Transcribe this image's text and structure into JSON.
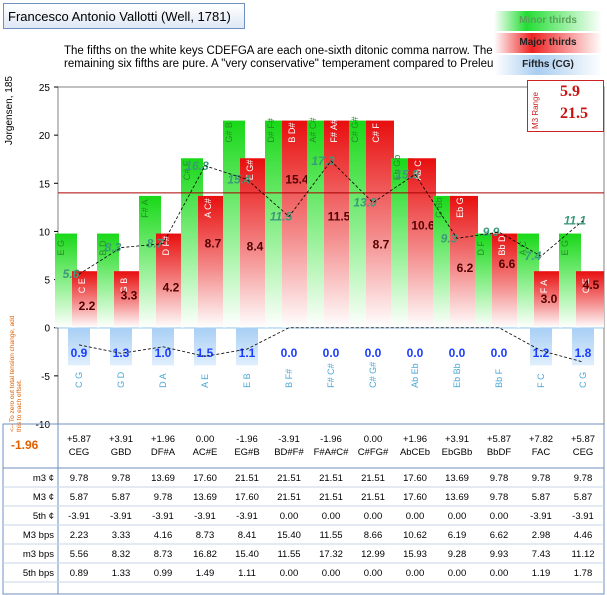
{
  "title": "Francesco Antonio Vallotti (Well, 1781)",
  "description": "The fifths on the white keys CDEFGA are each one-sixth ditonic comma narrow. The remaining six fifths are pure. A \"very conservative\" temperament compared to Preleur.",
  "legend": {
    "minor": "Minor thirds",
    "major": "Major thirds",
    "fifths": "Fifths (CG)"
  },
  "m3_range": {
    "label": "M3 Range",
    "min": "5.9",
    "max": "21.5"
  },
  "ylabel": "Jorgensen, 185",
  "side_note": "<-- To zero out total tension change, add this to each offset.",
  "offset_value": "-1.96",
  "colors": {
    "minor": "#22dd33",
    "major": "#ee2222",
    "fifth": "#a9cdf0",
    "fifth_text": "#1a3cff",
    "ref_line": "#aa0000"
  },
  "chart_data": {
    "type": "bar",
    "ylim": [
      -10,
      25
    ],
    "yticks": [
      25,
      20,
      15,
      10,
      5,
      0,
      -5,
      -10
    ],
    "ref_line": 14,
    "keys": [
      "CEG",
      "GBD",
      "DF#A",
      "AC#E",
      "EG#B",
      "BD#F#",
      "F#A#C#",
      "C#FG#",
      "AbCEb",
      "EbGBb",
      "BbDF",
      "FAC",
      "CEG"
    ],
    "offsets": [
      "+5.87",
      "+3.91",
      "+1.96",
      "0.00",
      "-1.96",
      "-3.91",
      "-1.96",
      "0.00",
      "+1.96",
      "+3.91",
      "+5.87",
      "+7.82",
      "+5.87"
    ],
    "minor_labels": [
      "E G",
      "B D",
      "F# A",
      "C# E",
      "G# B",
      "D# F#",
      "A# C#",
      "C# G#",
      "Eb Gb",
      "G Bb",
      "D F",
      "A C",
      "E G"
    ],
    "major_labels": [
      "C E",
      "G B",
      "D F#",
      "A C#",
      "E G#",
      "B D#",
      "F# A#",
      "C# F",
      "Ab C",
      "Eb G",
      "Bb D",
      "F A",
      "C E"
    ],
    "fifth_labels": [
      "C G",
      "G D",
      "D A",
      "A E",
      "E B",
      "B F#",
      "F# C#",
      "C# G#",
      "Ab Eb",
      "Eb Bb",
      "Bb F",
      "F C",
      "C G"
    ],
    "series": [
      {
        "name": "m3 ¢",
        "values": [
          9.78,
          9.78,
          13.69,
          17.6,
          21.51,
          21.51,
          21.51,
          21.51,
          17.6,
          13.69,
          9.78,
          9.78,
          9.78
        ]
      },
      {
        "name": "M3 ¢",
        "values": [
          5.87,
          5.87,
          9.78,
          13.69,
          17.6,
          21.51,
          21.51,
          21.51,
          17.6,
          13.69,
          9.78,
          5.87,
          5.87
        ]
      },
      {
        "name": "5th ¢",
        "values": [
          -3.91,
          -3.91,
          -3.91,
          -3.91,
          -3.91,
          0.0,
          0.0,
          0.0,
          0.0,
          0.0,
          0.0,
          -3.91,
          -3.91
        ]
      },
      {
        "name": "M3 bps",
        "values": [
          2.23,
          3.33,
          4.16,
          8.73,
          8.41,
          15.4,
          11.55,
          8.66,
          10.62,
          6.19,
          6.62,
          2.98,
          4.46
        ]
      },
      {
        "name": "m3 bps",
        "values": [
          5.56,
          8.32,
          8.73,
          16.82,
          15.4,
          11.55,
          17.32,
          12.99,
          15.93,
          9.28,
          9.93,
          7.43,
          11.12
        ]
      },
      {
        "name": "5th bps",
        "values": [
          0.89,
          1.33,
          0.99,
          1.49,
          1.11,
          0.0,
          0.0,
          0.0,
          0.0,
          0.0,
          0.0,
          1.19,
          1.78
        ]
      }
    ],
    "major_bps_labels": [
      "2.2",
      "3.3",
      "4.2",
      "8.7",
      "8.4",
      "15.4",
      "11.5",
      "8.7",
      "10.6",
      "6.2",
      "6.6",
      "3.0",
      "4.5"
    ],
    "minor_bps_labels": [
      "5.6",
      "8.3",
      "8.7",
      "16.8",
      "15.4",
      "11.5",
      "17.3",
      "13.0",
      "15.9",
      "9.3",
      "9.9",
      "7.4",
      "11.1"
    ],
    "fifth_bps_labels": [
      "0.9",
      "1.3",
      "1.0",
      "1.5",
      "1.1",
      "0.0",
      "0.0",
      "0.0",
      "0.0",
      "0.0",
      "0.0",
      "1.2",
      "1.8"
    ]
  }
}
